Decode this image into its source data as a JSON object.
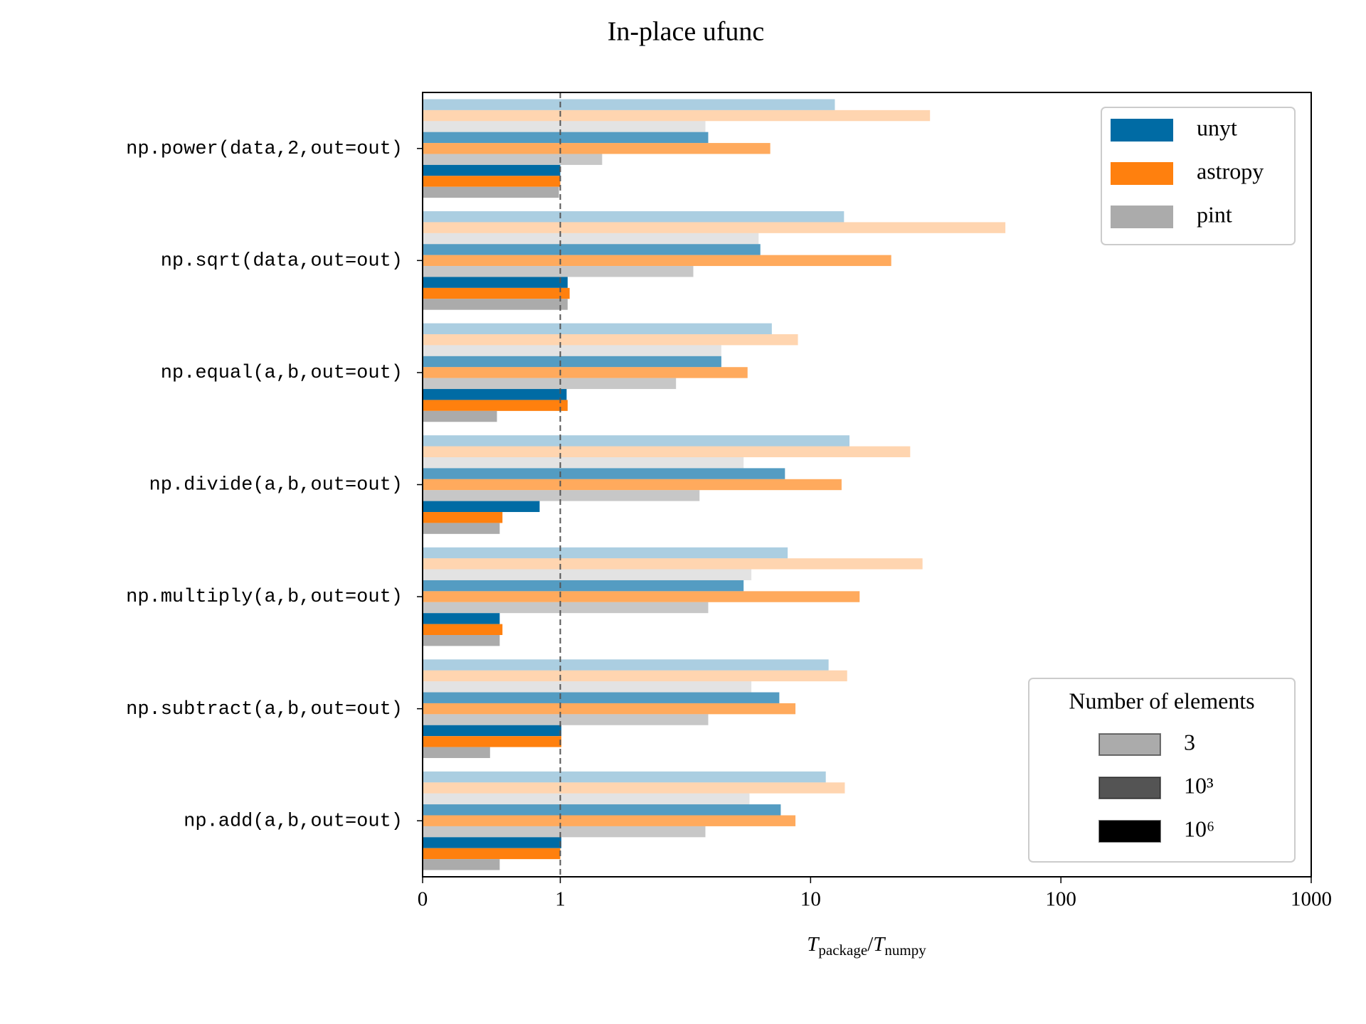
{
  "chart_data": {
    "type": "bar",
    "orientation": "horizontal",
    "title": "In-place ufunc",
    "categories": [
      "np.power(data,2,out=out)",
      "np.sqrt(data,out=out)",
      "np.equal(a,b,out=out)",
      "np.divide(a,b,out=out)",
      "np.multiply(a,b,out=out)",
      "np.subtract(a,b,out=out)",
      "np.add(a,b,out=out)"
    ],
    "series": [
      {
        "name": "unyt",
        "color": "#006ba4",
        "values": [
          [
            12.5,
            13.6,
            7.0,
            14.3,
            8.1,
            11.8,
            11.5
          ],
          [
            3.9,
            6.3,
            4.4,
            7.9,
            5.4,
            7.5,
            7.6
          ],
          [
            1.0,
            1.07,
            1.06,
            0.85,
            0.56,
            1.01,
            1.01
          ]
        ]
      },
      {
        "name": "astropy",
        "color": "#ff800e",
        "values": [
          [
            30,
            60,
            8.9,
            25,
            28,
            14,
            13.7
          ],
          [
            6.9,
            21,
            5.6,
            13.3,
            15.7,
            8.7,
            8.7
          ],
          [
            1.0,
            1.09,
            1.07,
            0.58,
            0.58,
            1.01,
            1.0
          ]
        ]
      },
      {
        "name": "pint",
        "color": "#ababab",
        "values": [
          [
            3.8,
            6.2,
            4.4,
            5.4,
            5.8,
            5.8,
            5.7
          ],
          [
            1.47,
            3.4,
            2.9,
            3.6,
            3.9,
            3.9,
            3.8
          ],
          [
            0.99,
            1.07,
            0.54,
            0.56,
            0.56,
            0.49,
            0.56
          ]
        ]
      }
    ],
    "sizes": {
      "title": "Number of elements",
      "labels": [
        "3",
        "10³",
        "10⁶"
      ],
      "opacity": [
        0.33,
        0.67,
        1
      ]
    },
    "xscale": "symlog",
    "xlim": [
      0,
      1000
    ],
    "xticks": [
      0,
      1,
      10,
      100,
      1000
    ],
    "reference_line": 1,
    "xlabel": {
      "t1": "T",
      "sub1": "package",
      "sep": "/",
      "t2": "T",
      "sub2": "numpy"
    },
    "legend": "upper right",
    "size_legend": "lower right"
  }
}
